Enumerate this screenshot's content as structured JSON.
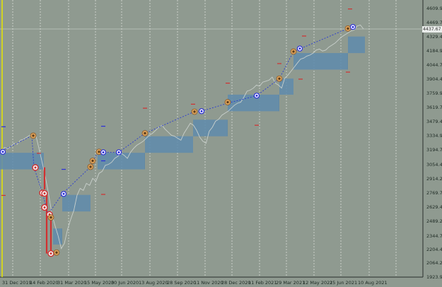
{
  "window": {
    "title": ""
  },
  "chart_data": {
    "type": "line",
    "title": "",
    "xlabel": "",
    "ylabel": "",
    "ylim": [
      1965,
      4680
    ],
    "y_ticks": [
      "4609.95",
      "4469.70",
      "4329.45",
      "4184.95",
      "4044.70",
      "3904.45",
      "3759.95",
      "3619.70",
      "3479.45",
      "3334.95",
      "3194.70",
      "3054.45",
      "2914.20",
      "2769.70",
      "2629.45",
      "2489.20",
      "2344.70",
      "2204.45",
      "2064.20",
      "1923.95"
    ],
    "x_ticks": [
      "31 Dec 2019",
      "14 Feb 2020",
      "31 Mar 2020",
      "15 May 2020",
      "30 Jun 2020",
      "13 Aug 2020",
      "28 Sep 2020",
      "11 Nov 2020",
      "28 Dec 2020",
      "11 Feb 2021",
      "29 Mar 2021",
      "12 May 2021",
      "25 Jun 2021",
      "10 Aug 2021"
    ],
    "current_price": "4437.67",
    "series": [
      {
        "values": [
          3230,
          3258,
          3245,
          3270,
          3300,
          3290,
          3330,
          3340,
          3360,
          3380,
          3375,
          3370,
          3240,
          3100,
          2960,
          2790,
          2600,
          2480,
          2380,
          2250,
          2300,
          2440,
          2540,
          2630,
          2780,
          2850,
          2830,
          2900,
          2880,
          2950,
          2920,
          3000,
          3020,
          3080,
          3090,
          3110,
          3150,
          3170,
          3200,
          3180,
          3150,
          3210,
          3250,
          3280,
          3300,
          3320,
          3350,
          3380,
          3400,
          3430,
          3460,
          3480,
          3440,
          3410,
          3380,
          3370,
          3350,
          3330,
          3400,
          3450,
          3500,
          3480,
          3430,
          3360,
          3320,
          3300,
          3420,
          3460,
          3520,
          3540,
          3580,
          3600,
          3620,
          3650,
          3680,
          3700,
          3710,
          3760,
          3820,
          3830,
          3850,
          3880,
          3870,
          3910,
          3920,
          3930,
          3960,
          3900,
          3880,
          3850,
          3950,
          3980,
          4020,
          4060,
          4100,
          4140,
          4150,
          4170,
          4180,
          4200,
          4230,
          4240,
          4220,
          4230,
          4260,
          4280,
          4300,
          4330,
          4360,
          4380,
          4400,
          4420,
          4430,
          4470,
          4480,
          4440
        ]
      }
    ],
    "trend_points": [
      {
        "x": 0,
        "y": 3215
      },
      {
        "x": 45,
        "y": 3375
      },
      {
        "x": 48,
        "y": 3060
      },
      {
        "x": 60,
        "y": 2805
      },
      {
        "x": 68,
        "y": 2590
      },
      {
        "x": 88,
        "y": 2795
      },
      {
        "x": 128,
        "y": 3065
      },
      {
        "x": 138,
        "y": 3210
      },
      {
        "x": 168,
        "y": 3210
      },
      {
        "x": 205,
        "y": 3400
      },
      {
        "x": 273,
        "y": 3610
      },
      {
        "x": 285,
        "y": 3620
      },
      {
        "x": 322,
        "y": 3700
      },
      {
        "x": 363,
        "y": 3775
      },
      {
        "x": 395,
        "y": 3945
      },
      {
        "x": 415,
        "y": 4215
      },
      {
        "x": 425,
        "y": 4245
      },
      {
        "x": 492,
        "y": 4445
      },
      {
        "x": 498,
        "y": 4460
      }
    ],
    "blocks": [
      {
        "x0": 0,
        "x1": 62,
        "y0": 3040,
        "y1": 3205
      },
      {
        "x0": 75,
        "x1": 88,
        "y0": 2290,
        "y1": 2450
      },
      {
        "x0": 88,
        "x1": 128,
        "y0": 2620,
        "y1": 2785
      },
      {
        "x0": 138,
        "x1": 205,
        "y0": 3040,
        "y1": 3205
      },
      {
        "x0": 205,
        "x1": 273,
        "y0": 3205,
        "y1": 3370
      },
      {
        "x0": 273,
        "x1": 322,
        "y0": 3370,
        "y1": 3535
      },
      {
        "x0": 322,
        "x1": 395,
        "y0": 3620,
        "y1": 3785
      },
      {
        "x0": 395,
        "x1": 415,
        "y0": 3785,
        "y1": 3945
      },
      {
        "x0": 415,
        "x1": 492,
        "y0": 4035,
        "y1": 4200
      },
      {
        "x0": 492,
        "x1": 516,
        "y0": 4200,
        "y1": 4365
      }
    ],
    "red_segments": [
      {
        "x0": 63,
        "x1": 63,
        "y0": 2840,
        "y1": 3060
      },
      {
        "x0": 66,
        "x1": 66,
        "y0": 2200,
        "y1": 2820
      },
      {
        "x0": 72,
        "x1": 72,
        "y0": 2190,
        "y1": 2560
      }
    ],
    "markers": [
      {
        "x": 4,
        "y": 3215,
        "kind": "blue"
      },
      {
        "x": 47,
        "y": 3376,
        "kind": "orange"
      },
      {
        "x": 50,
        "y": 3058,
        "kind": "red"
      },
      {
        "x": 60,
        "y": 2805,
        "kind": "red"
      },
      {
        "x": 63,
        "y": 2800,
        "kind": "red"
      },
      {
        "x": 63,
        "y": 2660,
        "kind": "red"
      },
      {
        "x": 70,
        "y": 2590,
        "kind": "red"
      },
      {
        "x": 72,
        "y": 2200,
        "kind": "red"
      },
      {
        "x": 80,
        "y": 2210,
        "kind": "orange"
      },
      {
        "x": 72,
        "y": 2560,
        "kind": "orange"
      },
      {
        "x": 90,
        "y": 2795,
        "kind": "blue"
      },
      {
        "x": 128,
        "y": 3065,
        "kind": "orange"
      },
      {
        "x": 131,
        "y": 3125,
        "kind": "orange"
      },
      {
        "x": 140,
        "y": 3215,
        "kind": "orange"
      },
      {
        "x": 146,
        "y": 3210,
        "kind": "blue"
      },
      {
        "x": 168,
        "y": 3210,
        "kind": "blue"
      },
      {
        "x": 205,
        "y": 3400,
        "kind": "orange"
      },
      {
        "x": 275,
        "y": 3615,
        "kind": "orange"
      },
      {
        "x": 285,
        "y": 3620,
        "kind": "blue"
      },
      {
        "x": 322,
        "y": 3710,
        "kind": "orange"
      },
      {
        "x": 363,
        "y": 3775,
        "kind": "blue"
      },
      {
        "x": 395,
        "y": 3945,
        "kind": "orange"
      },
      {
        "x": 415,
        "y": 4215,
        "kind": "orange"
      },
      {
        "x": 424,
        "y": 4245,
        "kind": "blue"
      },
      {
        "x": 492,
        "y": 4445,
        "kind": "orange"
      },
      {
        "x": 499,
        "y": 4460,
        "kind": "blue"
      }
    ],
    "dashes": [
      {
        "x": 5,
        "y": 3465,
        "kind": "blue"
      },
      {
        "x": 55,
        "y": 3200,
        "kind": "red"
      },
      {
        "x": 5,
        "y": 2780,
        "kind": "red"
      },
      {
        "x": 90,
        "y": 3040,
        "kind": "blue"
      },
      {
        "x": 146,
        "y": 3470,
        "kind": "blue"
      },
      {
        "x": 146,
        "y": 2790,
        "kind": "red"
      },
      {
        "x": 205,
        "y": 3650,
        "kind": "red"
      },
      {
        "x": 273,
        "y": 3690,
        "kind": "red"
      },
      {
        "x": 322,
        "y": 3900,
        "kind": "red"
      },
      {
        "x": 363,
        "y": 3480,
        "kind": "red"
      },
      {
        "x": 395,
        "y": 4095,
        "kind": "red"
      },
      {
        "x": 425,
        "y": 3940,
        "kind": "red"
      },
      {
        "x": 430,
        "y": 4370,
        "kind": "red"
      },
      {
        "x": 492,
        "y": 4010,
        "kind": "red"
      },
      {
        "x": 495,
        "y": 4640,
        "kind": "red"
      },
      {
        "x": 146,
        "y": 3125,
        "kind": "blue"
      }
    ],
    "colors": {
      "background": "#8f9a90",
      "grid": "#d8ddd8",
      "price_line": "#c9d0cc",
      "block": "#5b86a8",
      "block_line": "#7ba3c2",
      "trend": "#2a3bd0",
      "red": "#d13030",
      "orange": "#d9a05a",
      "blue_marker": "#2b2fd8",
      "cursor": "#e6e400"
    }
  }
}
